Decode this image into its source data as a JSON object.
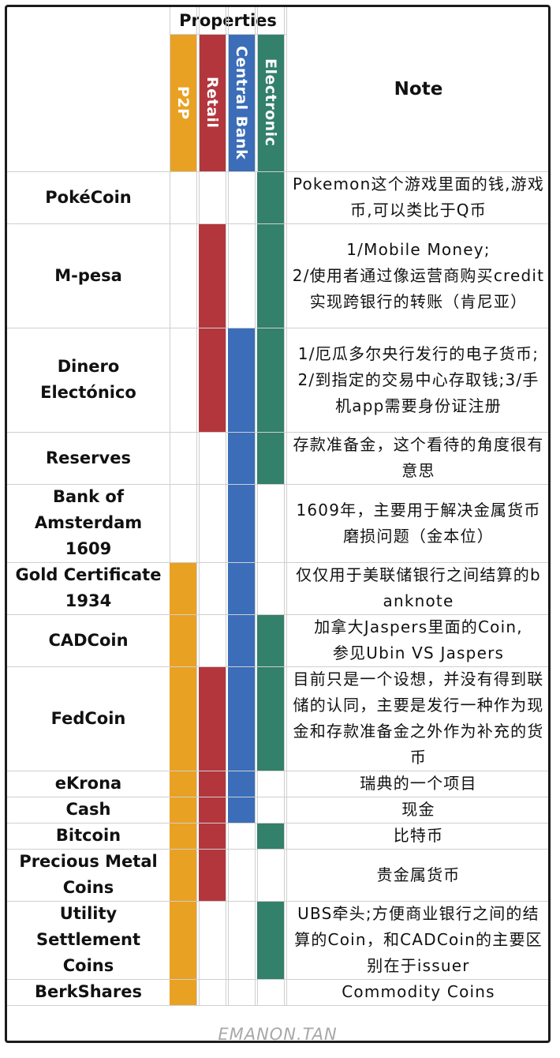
{
  "header": {
    "properties_label": "Properties",
    "note_label": "Note",
    "columns": [
      {
        "label": "P2P",
        "color": "#E9A124",
        "text_color": "#ffffff"
      },
      {
        "label": "Retail",
        "color": "#B3363D",
        "text_color": "#ffffff"
      },
      {
        "label": "Central Bank",
        "color": "#3B6DB8",
        "text_color": "#ffffff"
      },
      {
        "label": "Electronic",
        "color": "#33806B",
        "text_color": "#ffffff"
      }
    ]
  },
  "rows": [
    {
      "name": "PokéCoin",
      "p2p": false,
      "retail": false,
      "central_bank": false,
      "electronic": true,
      "note": "Pokemon这个游戏里面的钱,游戏币,可以类比于Q币"
    },
    {
      "name": "M-pesa",
      "p2p": false,
      "retail": true,
      "central_bank": false,
      "electronic": true,
      "note": "1/Mobile Money;\n2/使用者通过像运营商购买credit实现跨银行的转账（肯尼亚）"
    },
    {
      "name": "Dinero\nElectónico",
      "p2p": false,
      "retail": true,
      "central_bank": true,
      "electronic": true,
      "note": "1/厄瓜多尔央行发行的电子货币;2/到指定的交易中心存取钱;3/手机app需要身份证注册"
    },
    {
      "name": "Reserves",
      "p2p": false,
      "retail": false,
      "central_bank": true,
      "electronic": true,
      "note": "存款准备金，这个看待的角度很有意思"
    },
    {
      "name": "Bank of\nAmsterdam\n1609",
      "p2p": false,
      "retail": false,
      "central_bank": true,
      "electronic": false,
      "note": "1609年，主要用于解决金属货币磨损问题（金本位）"
    },
    {
      "name": "Gold Certificate\n1934",
      "p2p": true,
      "retail": false,
      "central_bank": true,
      "electronic": false,
      "note": "仅仅用于美联储银行之间结算的banknote"
    },
    {
      "name": "CADCoin",
      "p2p": true,
      "retail": false,
      "central_bank": true,
      "electronic": true,
      "note": "加拿大Jaspers里面的Coin,\n参见Ubin VS Jaspers"
    },
    {
      "name": "FedCoin",
      "p2p": true,
      "retail": true,
      "central_bank": true,
      "electronic": true,
      "note": "目前只是一个设想，并没有得到联储的认同，主要是发行一种作为现金和存款准备金之外作为补充的货币"
    },
    {
      "name": "eKrona",
      "p2p": true,
      "retail": true,
      "central_bank": true,
      "electronic": false,
      "note": "瑞典的一个项目"
    },
    {
      "name": "Cash",
      "p2p": true,
      "retail": true,
      "central_bank": true,
      "electronic": false,
      "note": "现金"
    },
    {
      "name": "Bitcoin",
      "p2p": true,
      "retail": true,
      "central_bank": false,
      "electronic": true,
      "note": "比特币"
    },
    {
      "name": "Precious Metal\nCoins",
      "p2p": true,
      "retail": true,
      "central_bank": false,
      "electronic": false,
      "note": "贵金属货币"
    },
    {
      "name": "Utility\nSettlement\nCoins",
      "p2p": true,
      "retail": false,
      "central_bank": false,
      "electronic": true,
      "note": "UBS牵头;方便商业银行之间的结算的Coin，和CADCoin的主要区别在于issuer"
    },
    {
      "name": "BerkShares",
      "p2p": true,
      "retail": false,
      "central_bank": false,
      "electronic": false,
      "note": "Commodity Coins"
    }
  ],
  "footer": {
    "watermark": "EMANON.TAN"
  }
}
